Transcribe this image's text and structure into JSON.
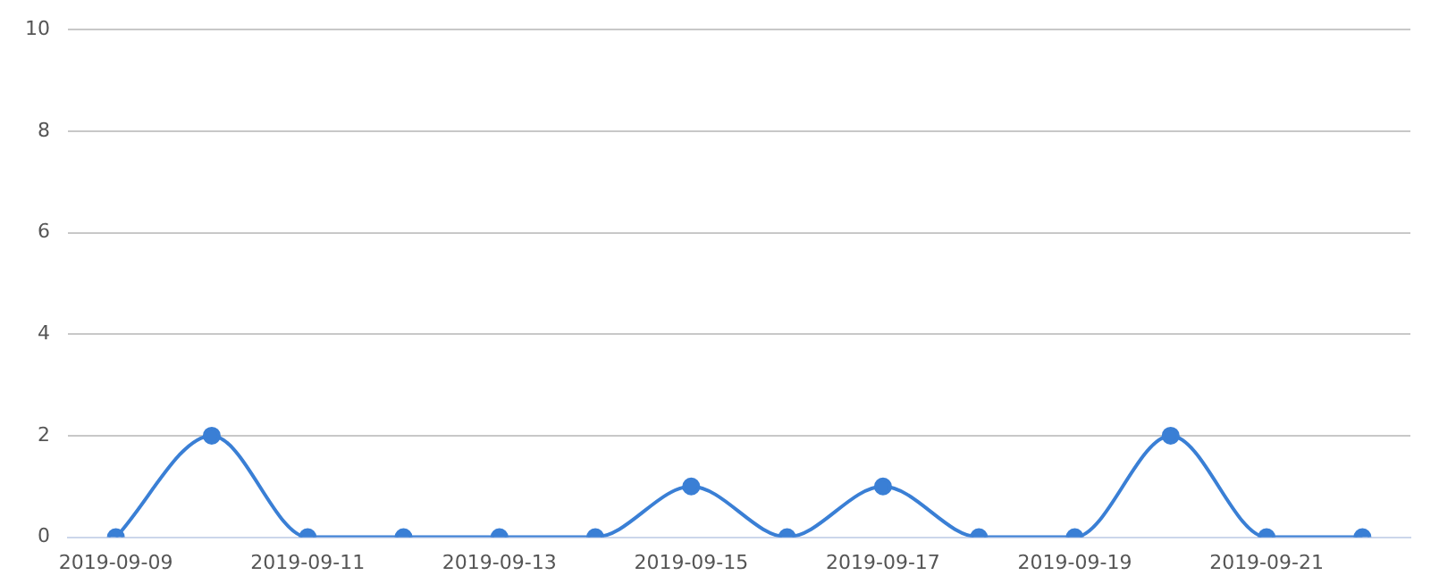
{
  "chart_data": {
    "type": "line",
    "categories": [
      "2019-09-09",
      null,
      "2019-09-11",
      null,
      "2019-09-13",
      null,
      "2019-09-15",
      null,
      "2019-09-17",
      null,
      "2019-09-19",
      null,
      "2019-09-21",
      null
    ],
    "series": [
      {
        "color": "#3a7fd5",
        "values": [
          0,
          2,
          0,
          0,
          0,
          0,
          1,
          0,
          1,
          0,
          0,
          2,
          0,
          0
        ]
      }
    ],
    "ylim": [
      0,
      10
    ],
    "yticks": [
      0,
      2,
      4,
      6,
      8,
      10
    ],
    "grid": "y",
    "legend": false,
    "marker": "circle",
    "line_style": "solid"
  }
}
